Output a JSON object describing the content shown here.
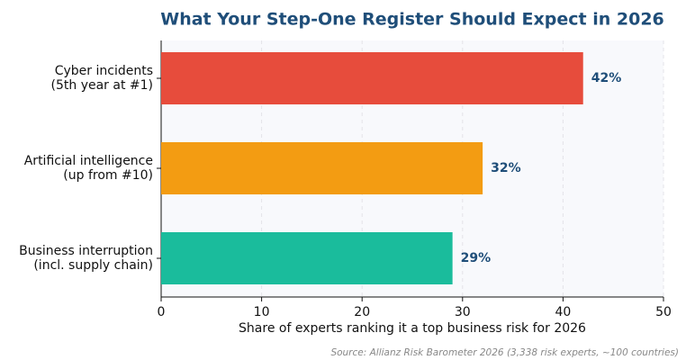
{
  "chart_data": {
    "type": "hbar",
    "title": "What Your Step-One Register Should Expect in 2026",
    "categories": [
      "Cyber incidents\n(5th year at #1)",
      "Artificial intelligence\n(up from #10)",
      "Business interruption\n(incl. supply chain)"
    ],
    "values": [
      42,
      32,
      29
    ],
    "value_labels": [
      "42%",
      "32%",
      "29%"
    ],
    "colors": [
      "#e74c3c",
      "#f39c12",
      "#1abc9c"
    ],
    "xlim": [
      0,
      50
    ],
    "xticks": [
      0,
      10,
      20,
      30,
      40,
      50
    ],
    "xlabel": "Share of experts ranking it a top business risk for 2026",
    "source": "Source: Allianz Risk Barometer 2026 (3,338 risk experts, ~100 countries)",
    "grid": true
  }
}
